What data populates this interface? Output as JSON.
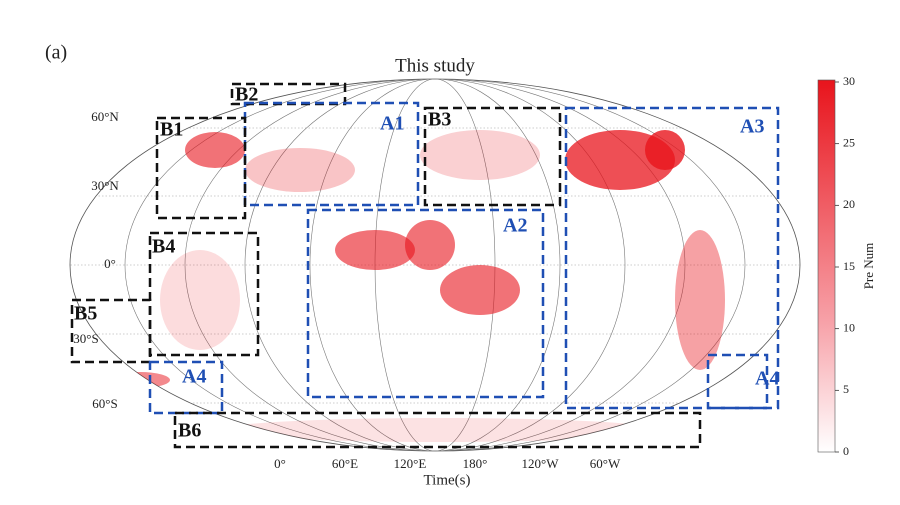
{
  "panel_label": "(a)",
  "title": "This study",
  "x_label": "Time(s)",
  "lat_labels": [
    "60°N",
    "30°N",
    "0°",
    "30°S",
    "60°S"
  ],
  "lon_labels": [
    "0°",
    "60°E",
    "120°E",
    "180°",
    "120°W",
    "60°W"
  ],
  "regions": [
    {
      "label": "B2",
      "color": "#111111"
    },
    {
      "label": "A1",
      "color": "#1f4fb4"
    },
    {
      "label": "B1",
      "color": "#111111"
    },
    {
      "label": "B3",
      "color": "#111111"
    },
    {
      "label": "A3",
      "color": "#1f4fb4"
    },
    {
      "label": "A2",
      "color": "#1f4fb4"
    },
    {
      "label": "B4",
      "color": "#111111"
    },
    {
      "label": "B5",
      "color": "#111111"
    },
    {
      "label": "A4",
      "color": "#1f4fb4"
    },
    {
      "label": "A4",
      "color": "#1f4fb4"
    },
    {
      "label": "B6",
      "color": "#111111"
    }
  ],
  "colorbar": {
    "label": "Pre Num",
    "lim": [
      0,
      30
    ],
    "ticks": [
      0,
      5,
      10,
      15,
      20,
      25,
      30
    ],
    "color": "#e8141c"
  }
}
